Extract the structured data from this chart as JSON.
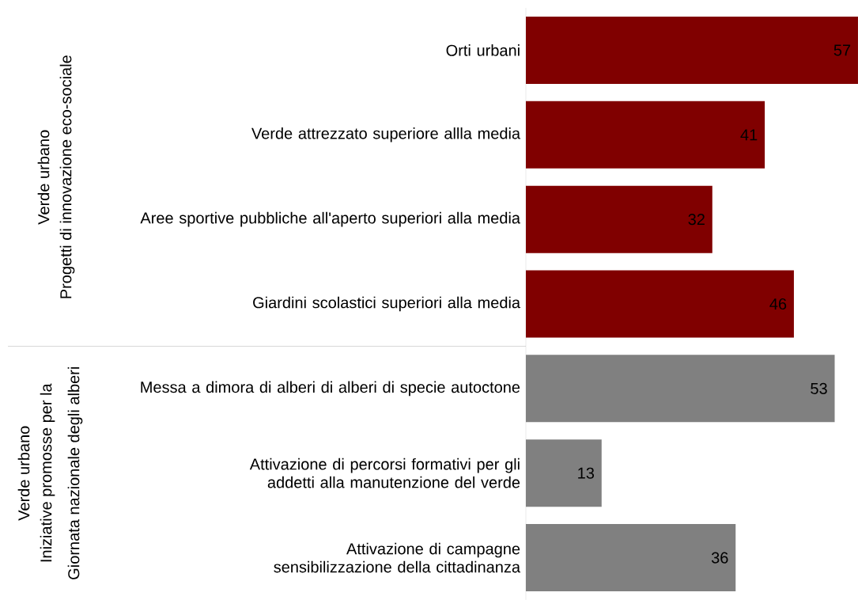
{
  "chart_data": {
    "type": "bar",
    "orientation": "horizontal",
    "categories": [
      "Orti urbani",
      "Verde attrezzato superiore allla media",
      "Aree sportive pubbliche all'aperto superiori alla media",
      "Giardini scolastici superiori alla media",
      "Messa a dimora di alberi di alberi di specie autoctone",
      "Attivazione di percorsi formativi per gli addetti alla manutenzione del verde",
      "Attivazione di campagne sensibilizzazione della cittadinanza"
    ],
    "values": [
      57,
      41,
      32,
      46,
      53,
      13,
      36
    ],
    "colors": [
      "#800000",
      "#800000",
      "#800000",
      "#800000",
      "#808080",
      "#808080",
      "#808080"
    ],
    "xlim": [
      0,
      57
    ],
    "data_labels": true,
    "annotations": [
      "Verde urbano",
      "Progetti di innovazione eco-sociale",
      "Verde urbano",
      "Iniziative promosse per la",
      "Giornata nazionale degli alberi"
    ]
  }
}
